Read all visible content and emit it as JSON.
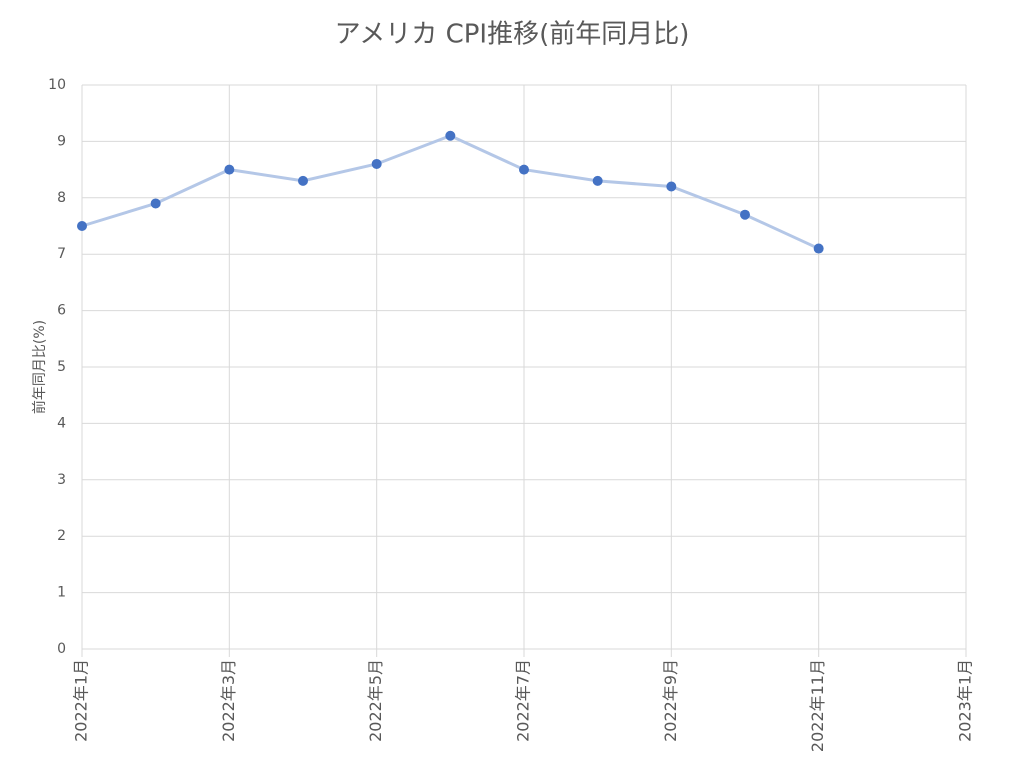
{
  "chart_data": {
    "type": "line",
    "title": "アメリカ CPI推移(前年同月比)",
    "y_label": "前年同月比(%)",
    "x": [
      "2022-01",
      "2022-02",
      "2022-03",
      "2022-04",
      "2022-05",
      "2022-06",
      "2022-07",
      "2022-08",
      "2022-09",
      "2022-10",
      "2022-11"
    ],
    "series": [
      {
        "color": "#4472c4",
        "line_color": "#b4c7e7",
        "values": [
          7.5,
          7.9,
          8.5,
          8.3,
          8.6,
          9.1,
          8.5,
          8.3,
          8.2,
          7.7,
          7.1
        ]
      }
    ],
    "xlim": [
      "2022-01",
      "2023-01"
    ],
    "xticks": [
      {
        "value": "2022-01",
        "label": "2022年1月"
      },
      {
        "value": "2022-03",
        "label": "2022年3月"
      },
      {
        "value": "2022-05",
        "label": "2022年5月"
      },
      {
        "value": "2022-07",
        "label": "2022年7月"
      },
      {
        "value": "2022-09",
        "label": "2022年9月"
      },
      {
        "value": "2022-11",
        "label": "2022年11月"
      },
      {
        "value": "2023-01",
        "label": "2023年1月"
      }
    ],
    "ylim": [
      0,
      10
    ],
    "yticks": [
      0,
      1,
      2,
      3,
      4,
      5,
      6,
      7,
      8,
      9,
      10
    ],
    "grid": true
  }
}
